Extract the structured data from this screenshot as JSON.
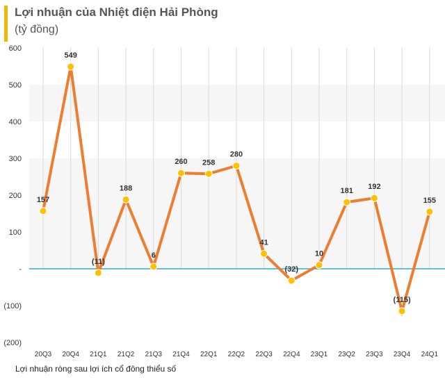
{
  "header": {
    "title": "Lợi nhuận của Nhiệt điện Hải Phòng",
    "subtitle": "(tỷ đồng)"
  },
  "caption": "Lợi nhuận ròng sau lợi ích cổ đông thiểu số",
  "chart_data": {
    "type": "line",
    "title": "Lợi nhuận của Nhiệt điện Hải Phòng",
    "subtitle": "(tỷ đồng)",
    "categories": [
      "20Q3",
      "20Q4",
      "21Q1",
      "21Q2",
      "21Q3",
      "21Q4",
      "22Q1",
      "22Q2",
      "22Q3",
      "22Q4",
      "23Q1",
      "23Q2",
      "23Q3",
      "23Q4",
      "24Q1"
    ],
    "series": [
      {
        "name": "Lợi nhuận ròng sau lợi ích cổ đông thiểu số",
        "values": [
          157,
          549,
          -11,
          188,
          6,
          260,
          258,
          280,
          41,
          -32,
          10,
          181,
          192,
          -115,
          155
        ]
      }
    ],
    "data_labels": [
      "157",
      "549",
      "(11)",
      "188",
      "6",
      "260",
      "258",
      "280",
      "41",
      "(32)",
      "10",
      "181",
      "192",
      "(115)",
      "155"
    ],
    "ylim": [
      -200,
      600
    ],
    "yticks": [
      600,
      500,
      400,
      300,
      200,
      100,
      0,
      -100,
      -200
    ],
    "ytick_labels": [
      "600",
      "500",
      "400",
      "300",
      "200",
      "100",
      "-",
      "(100)",
      "(200)"
    ],
    "grid": "vertical lines above baseline",
    "colors": {
      "line": "#ed7d31",
      "marker": "#ffc000",
      "baseline": "#2ab0c5",
      "accent": "#f2b705"
    }
  }
}
